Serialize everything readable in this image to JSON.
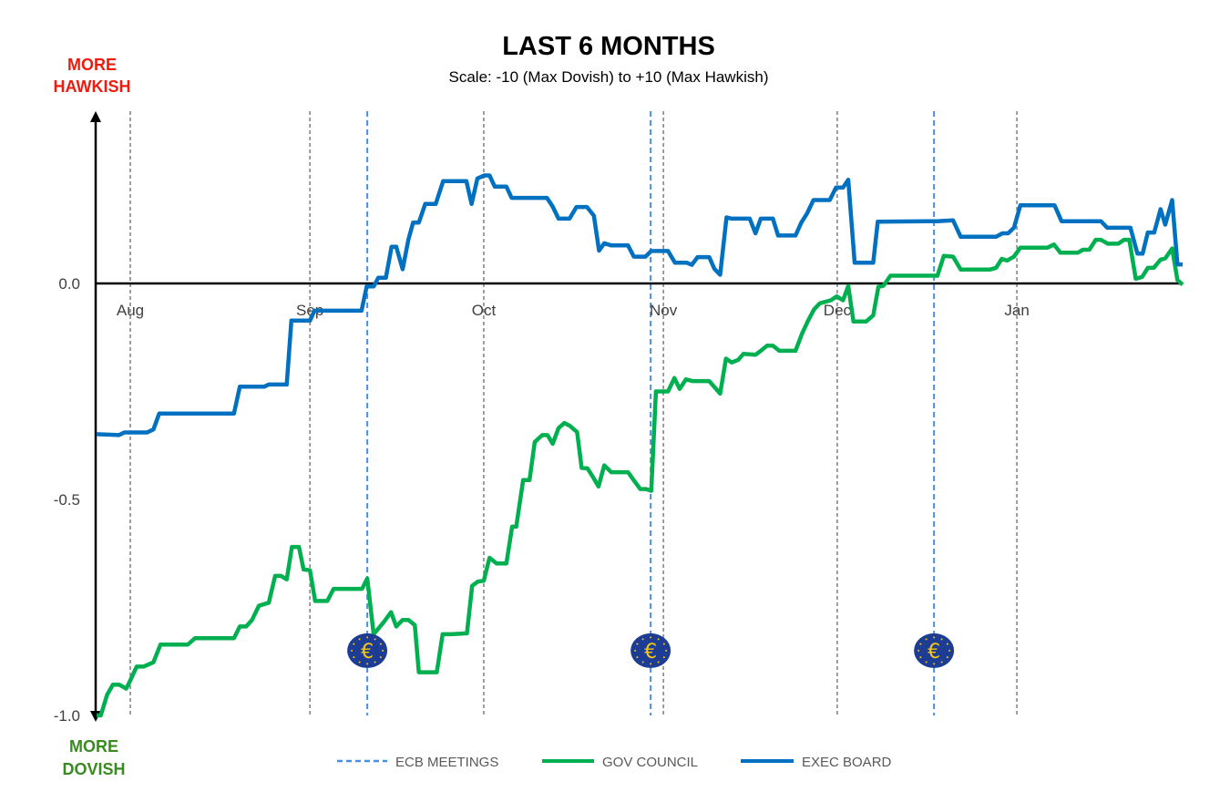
{
  "chart_data": {
    "type": "line",
    "title": "LAST 6 MONTHS",
    "subtitle": "Scale: -10 (Max Dovish)  to +10 (Max Hawkish)",
    "top_label": [
      "MORE",
      "HAWKISH"
    ],
    "bottom_label": [
      "MORE",
      "DOVISH"
    ],
    "xlabel": "",
    "ylabel": "",
    "x_units": "days since Aug 1",
    "xlim": [
      -5.9,
      181.6
    ],
    "ylim": [
      -1.0,
      0.39
    ],
    "y_ticks": [
      {
        "value": 0.0,
        "label": "0.0"
      },
      {
        "value": -0.5,
        "label": "-0.5"
      },
      {
        "value": -1.0,
        "label": "-1.0"
      }
    ],
    "x_ticks": [
      {
        "value": 0,
        "label": "Aug"
      },
      {
        "value": 31,
        "label": "Sep"
      },
      {
        "value": 61,
        "label": "Oct"
      },
      {
        "value": 92,
        "label": "Nov"
      },
      {
        "value": 122,
        "label": "Dec"
      },
      {
        "value": 153,
        "label": "Jan"
      }
    ],
    "grid": "vertical dashed at month starts",
    "legend_position": "bottom",
    "ecb_meetings": {
      "name": "ECB MEETINGS",
      "color": "#4a90e2",
      "x": [
        40.9,
        89.8,
        138.7
      ],
      "icon": "euro-icon",
      "icon_value": -0.85
    },
    "series": [
      {
        "name": "GOV COUNCIL",
        "color": "#00b050",
        "points": [
          [
            -5.8,
            -1.0
          ],
          [
            -5.1,
            -1.0
          ],
          [
            -4.0,
            -0.952
          ],
          [
            -3.0,
            -0.929
          ],
          [
            -1.9,
            -0.929
          ],
          [
            -0.7,
            -0.938
          ],
          [
            0.0,
            -0.919
          ],
          [
            1.1,
            -0.887
          ],
          [
            2.3,
            -0.887
          ],
          [
            4.0,
            -0.877
          ],
          [
            5.2,
            -0.836
          ],
          [
            9.9,
            -0.836
          ],
          [
            11.2,
            -0.821
          ],
          [
            17.9,
            -0.821
          ],
          [
            18.9,
            -0.794
          ],
          [
            20.0,
            -0.794
          ],
          [
            21.0,
            -0.779
          ],
          [
            22.2,
            -0.746
          ],
          [
            23.9,
            -0.739
          ],
          [
            25.0,
            -0.677
          ],
          [
            26.0,
            -0.677
          ],
          [
            27.0,
            -0.685
          ],
          [
            27.9,
            -0.61
          ],
          [
            29.1,
            -0.61
          ],
          [
            29.9,
            -0.662
          ],
          [
            31.0,
            -0.664
          ],
          [
            31.9,
            -0.735
          ],
          [
            34.0,
            -0.735
          ],
          [
            35.1,
            -0.707
          ],
          [
            40.0,
            -0.707
          ],
          [
            40.9,
            -0.683
          ],
          [
            42.0,
            -0.812
          ],
          [
            43.8,
            -0.783
          ],
          [
            45.0,
            -0.761
          ],
          [
            45.9,
            -0.794
          ],
          [
            47.0,
            -0.779
          ],
          [
            48.0,
            -0.779
          ],
          [
            49.1,
            -0.791
          ],
          [
            49.8,
            -0.9
          ],
          [
            52.9,
            -0.9
          ],
          [
            53.9,
            -0.812
          ],
          [
            55.3,
            -0.812
          ],
          [
            58.1,
            -0.81
          ],
          [
            59.0,
            -0.7
          ],
          [
            60.0,
            -0.69
          ],
          [
            61.0,
            -0.688
          ],
          [
            62.0,
            -0.635
          ],
          [
            63.2,
            -0.648
          ],
          [
            64.9,
            -0.648
          ],
          [
            65.9,
            -0.563
          ],
          [
            66.6,
            -0.563
          ],
          [
            67.8,
            -0.455
          ],
          [
            68.9,
            -0.455
          ],
          [
            69.8,
            -0.367
          ],
          [
            71.1,
            -0.351
          ],
          [
            72.0,
            -0.351
          ],
          [
            72.9,
            -0.371
          ],
          [
            73.9,
            -0.335
          ],
          [
            74.9,
            -0.323
          ],
          [
            75.9,
            -0.33
          ],
          [
            77.1,
            -0.344
          ],
          [
            77.9,
            -0.427
          ],
          [
            78.9,
            -0.428
          ],
          [
            79.8,
            -0.447
          ],
          [
            80.8,
            -0.47
          ],
          [
            81.8,
            -0.421
          ],
          [
            83.0,
            -0.437
          ],
          [
            85.9,
            -0.437
          ],
          [
            86.9,
            -0.456
          ],
          [
            88.0,
            -0.476
          ],
          [
            89.0,
            -0.476
          ],
          [
            89.9,
            -0.48
          ],
          [
            90.7,
            -0.25
          ],
          [
            92.8,
            -0.25
          ],
          [
            93.9,
            -0.219
          ],
          [
            94.8,
            -0.244
          ],
          [
            95.9,
            -0.222
          ],
          [
            97.0,
            -0.226
          ],
          [
            99.9,
            -0.226
          ],
          [
            101.8,
            -0.255
          ],
          [
            102.8,
            -0.174
          ],
          [
            103.8,
            -0.183
          ],
          [
            104.9,
            -0.177
          ],
          [
            105.8,
            -0.163
          ],
          [
            107.9,
            -0.165
          ],
          [
            108.8,
            -0.156
          ],
          [
            109.9,
            -0.144
          ],
          [
            110.9,
            -0.144
          ],
          [
            112.0,
            -0.156
          ],
          [
            114.8,
            -0.156
          ],
          [
            115.9,
            -0.117
          ],
          [
            116.9,
            -0.088
          ],
          [
            118.0,
            -0.06
          ],
          [
            119.0,
            -0.046
          ],
          [
            120.9,
            -0.039
          ],
          [
            121.9,
            -0.03
          ],
          [
            123.0,
            -0.039
          ],
          [
            123.9,
            -0.006
          ],
          [
            124.8,
            -0.088
          ],
          [
            127.0,
            -0.088
          ],
          [
            128.2,
            -0.074
          ],
          [
            129.1,
            -0.008
          ],
          [
            130.0,
            -0.005
          ],
          [
            131.2,
            0.018
          ],
          [
            139.3,
            0.018
          ],
          [
            140.4,
            0.064
          ],
          [
            142.0,
            0.062
          ],
          [
            143.3,
            0.032
          ],
          [
            148.3,
            0.032
          ],
          [
            149.4,
            0.036
          ],
          [
            150.4,
            0.057
          ],
          [
            151.3,
            0.053
          ],
          [
            152.5,
            0.062
          ],
          [
            153.6,
            0.083
          ],
          [
            158.3,
            0.083
          ],
          [
            159.4,
            0.09
          ],
          [
            160.5,
            0.071
          ],
          [
            163.5,
            0.071
          ],
          [
            164.4,
            0.078
          ],
          [
            165.5,
            0.078
          ],
          [
            166.6,
            0.101
          ],
          [
            167.5,
            0.101
          ],
          [
            168.7,
            0.092
          ],
          [
            170.5,
            0.092
          ],
          [
            171.5,
            0.101
          ],
          [
            172.4,
            0.101
          ],
          [
            173.5,
            0.011
          ],
          [
            174.6,
            0.015
          ],
          [
            175.6,
            0.036
          ],
          [
            176.6,
            0.036
          ],
          [
            177.8,
            0.055
          ],
          [
            178.6,
            0.058
          ],
          [
            179.8,
            0.081
          ],
          [
            180.7,
            0.008
          ],
          [
            181.6,
            -0.003
          ]
        ]
      },
      {
        "name": "EXEC BOARD",
        "color": "#0070c0",
        "points": [
          [
            -5.8,
            -0.349
          ],
          [
            -2.0,
            -0.351
          ],
          [
            -1.0,
            -0.345
          ],
          [
            2.9,
            -0.345
          ],
          [
            4.0,
            -0.338
          ],
          [
            5.0,
            -0.301
          ],
          [
            17.9,
            -0.301
          ],
          [
            18.9,
            -0.239
          ],
          [
            23.1,
            -0.239
          ],
          [
            23.9,
            -0.234
          ],
          [
            27.0,
            -0.234
          ],
          [
            27.8,
            -0.086
          ],
          [
            31.0,
            -0.086
          ],
          [
            31.8,
            -0.063
          ],
          [
            39.9,
            -0.063
          ],
          [
            40.8,
            -0.007
          ],
          [
            42.0,
            -0.007
          ],
          [
            42.8,
            0.013
          ],
          [
            44.1,
            0.013
          ],
          [
            45.1,
            0.085
          ],
          [
            45.9,
            0.085
          ],
          [
            47.0,
            0.033
          ],
          [
            48.0,
            0.102
          ],
          [
            48.8,
            0.141
          ],
          [
            49.8,
            0.141
          ],
          [
            50.9,
            0.184
          ],
          [
            52.7,
            0.184
          ],
          [
            54.0,
            0.237
          ],
          [
            58.0,
            0.237
          ],
          [
            58.9,
            0.184
          ],
          [
            59.9,
            0.243
          ],
          [
            61.1,
            0.25
          ],
          [
            62.0,
            0.25
          ],
          [
            62.9,
            0.224
          ],
          [
            64.9,
            0.224
          ],
          [
            65.8,
            0.198
          ],
          [
            71.9,
            0.198
          ],
          [
            72.9,
            0.178
          ],
          [
            73.9,
            0.15
          ],
          [
            75.8,
            0.15
          ],
          [
            77.0,
            0.177
          ],
          [
            78.8,
            0.177
          ],
          [
            80.0,
            0.157
          ],
          [
            80.9,
            0.076
          ],
          [
            81.8,
            0.093
          ],
          [
            83.0,
            0.088
          ],
          [
            85.9,
            0.088
          ],
          [
            86.9,
            0.062
          ],
          [
            88.9,
            0.062
          ],
          [
            89.9,
            0.075
          ],
          [
            92.8,
            0.075
          ],
          [
            94.0,
            0.048
          ],
          [
            96.0,
            0.048
          ],
          [
            96.9,
            0.043
          ],
          [
            97.9,
            0.061
          ],
          [
            99.9,
            0.061
          ],
          [
            100.8,
            0.034
          ],
          [
            101.8,
            0.02
          ],
          [
            102.9,
            0.153
          ],
          [
            103.8,
            0.15
          ],
          [
            106.9,
            0.15
          ],
          [
            107.9,
            0.116
          ],
          [
            108.8,
            0.15
          ],
          [
            110.9,
            0.15
          ],
          [
            111.8,
            0.111
          ],
          [
            114.8,
            0.111
          ],
          [
            115.8,
            0.141
          ],
          [
            116.8,
            0.162
          ],
          [
            117.9,
            0.193
          ],
          [
            120.7,
            0.193
          ],
          [
            121.8,
            0.222
          ],
          [
            123.0,
            0.222
          ],
          [
            123.9,
            0.24
          ],
          [
            125.0,
            0.048
          ],
          [
            128.2,
            0.048
          ],
          [
            129.0,
            0.143
          ],
          [
            139.3,
            0.144
          ],
          [
            142.0,
            0.146
          ],
          [
            143.3,
            0.108
          ],
          [
            149.4,
            0.108
          ],
          [
            150.5,
            0.116
          ],
          [
            151.5,
            0.116
          ],
          [
            152.5,
            0.129
          ],
          [
            153.6,
            0.181
          ],
          [
            159.5,
            0.181
          ],
          [
            160.7,
            0.144
          ],
          [
            167.5,
            0.144
          ],
          [
            168.6,
            0.129
          ],
          [
            172.6,
            0.129
          ],
          [
            173.8,
            0.069
          ],
          [
            174.7,
            0.069
          ],
          [
            175.6,
            0.118
          ],
          [
            176.7,
            0.118
          ],
          [
            177.8,
            0.172
          ],
          [
            178.6,
            0.136
          ],
          [
            179.8,
            0.193
          ],
          [
            180.7,
            0.044
          ],
          [
            181.6,
            0.044
          ]
        ]
      }
    ]
  }
}
